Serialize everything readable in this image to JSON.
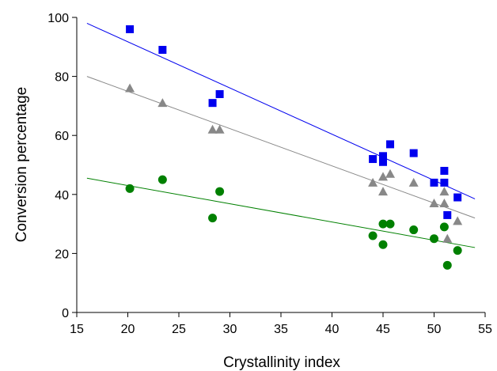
{
  "chart_data": {
    "type": "scatter",
    "title": "",
    "xlabel": "Crystallinity index",
    "ylabel": "Conversion percentage",
    "xlim": [
      15,
      55
    ],
    "ylim": [
      0,
      100
    ],
    "xticks": [
      15,
      20,
      25,
      30,
      35,
      40,
      45,
      50,
      55
    ],
    "yticks": [
      0,
      20,
      40,
      60,
      80,
      100
    ],
    "grid": false,
    "legend": "none",
    "series": [
      {
        "marker": "square",
        "color": "#0000ee",
        "points": [
          [
            20.2,
            96
          ],
          [
            23.4,
            89
          ],
          [
            28.3,
            71
          ],
          [
            29.0,
            74
          ],
          [
            44.0,
            52
          ],
          [
            45.0,
            53
          ],
          [
            45.0,
            51
          ],
          [
            45.7,
            57
          ],
          [
            48.0,
            54
          ],
          [
            50.0,
            44
          ],
          [
            51.0,
            48
          ],
          [
            51.0,
            44
          ],
          [
            51.3,
            33
          ],
          [
            52.3,
            39
          ]
        ],
        "trend": [
          [
            16,
            98
          ],
          [
            54,
            38.5
          ]
        ]
      },
      {
        "marker": "triangle",
        "color": "#888888",
        "points": [
          [
            20.2,
            76
          ],
          [
            23.4,
            71
          ],
          [
            28.3,
            62
          ],
          [
            29.0,
            62
          ],
          [
            44.0,
            44
          ],
          [
            45.0,
            46
          ],
          [
            45.0,
            41
          ],
          [
            45.7,
            47
          ],
          [
            48.0,
            44
          ],
          [
            50.0,
            37
          ],
          [
            51.0,
            41
          ],
          [
            51.0,
            37
          ],
          [
            51.3,
            25
          ],
          [
            52.3,
            31
          ]
        ],
        "trend": [
          [
            16,
            80
          ],
          [
            54,
            32
          ]
        ]
      },
      {
        "marker": "circle",
        "color": "#008000",
        "points": [
          [
            20.2,
            42
          ],
          [
            23.4,
            45
          ],
          [
            28.3,
            32
          ],
          [
            29.0,
            41
          ],
          [
            44.0,
            26
          ],
          [
            45.0,
            30
          ],
          [
            45.0,
            23
          ],
          [
            45.7,
            30
          ],
          [
            48.0,
            28
          ],
          [
            50.0,
            25
          ],
          [
            51.0,
            29
          ],
          [
            51.3,
            16
          ],
          [
            52.3,
            21
          ]
        ],
        "trend": [
          [
            16,
            45.5
          ],
          [
            54,
            22
          ]
        ]
      }
    ]
  }
}
